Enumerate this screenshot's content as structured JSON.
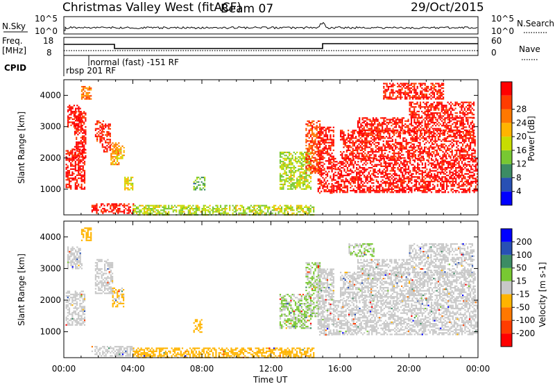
{
  "header": {
    "station": "Christmas Valley West (fitACF)",
    "beam": "Beam 07",
    "date": "29/Oct/2015"
  },
  "panels": {
    "nsky": {
      "label": "N.Sky",
      "tick_top": "10^5",
      "tick_bottom": "10^0",
      "right_label": "N.Search",
      "right_tick_top": "10^5",
      "right_tick_bottom": "10^0"
    },
    "freq": {
      "label": "Freq.",
      "unit": "[MHz]",
      "tick_top": "18",
      "tick_bottom": "8",
      "right_label": "Nave",
      "right_tick_top": "60",
      "right_tick_bottom": "0"
    },
    "cpid": {
      "label": "CPID",
      "mode1": "rbsp 201 RF",
      "mode2": "normal (fast) -151 RF"
    }
  },
  "colors": {
    "power": [
      "#0000ff",
      "#2850b4",
      "#3c8c64",
      "#78c832",
      "#c8dc00",
      "#ffb400",
      "#ff7800",
      "#ff3c00",
      "#ff0000"
    ],
    "velocity": [
      "#ff0000",
      "#ff3c00",
      "#ff7800",
      "#ffb400",
      "#c8c8c8",
      "#78c832",
      "#3c8c64",
      "#2850b4",
      "#0000ff"
    ],
    "ground_scatter": "#c8c8c8"
  },
  "chart_data": [
    {
      "type": "heatmap",
      "title": "Power",
      "ylabel": "Slant Range [km]",
      "xlabel": "Time UT",
      "xlim": [
        "00:00",
        "24:00"
      ],
      "ylim": [
        180,
        4500
      ],
      "y_ticks": [
        "1000",
        "2000",
        "3000",
        "4000"
      ],
      "colorbar": {
        "label": "Power [dB]",
        "ticks": [
          "4",
          "8",
          "12",
          "16",
          "20",
          "24",
          "28"
        ],
        "range": [
          0,
          30
        ]
      },
      "regions": [
        {
          "t0": 0.1,
          "t1": 1.2,
          "r0": 1000,
          "r1": 2300,
          "level": 28
        },
        {
          "t0": 0.2,
          "t1": 1.0,
          "r0": 3000,
          "r1": 3700,
          "level": 28
        },
        {
          "t0": 0.6,
          "t1": 1.3,
          "r0": 2000,
          "r1": 3500,
          "level": 28
        },
        {
          "t0": 1.0,
          "t1": 1.6,
          "r0": 3900,
          "r1": 4300,
          "level": 22
        },
        {
          "t0": 1.8,
          "t1": 2.3,
          "r0": 2500,
          "r1": 3200,
          "level": 26
        },
        {
          "t0": 2.2,
          "t1": 2.7,
          "r0": 2200,
          "r1": 3100,
          "level": 27
        },
        {
          "t0": 2.7,
          "t1": 3.2,
          "r0": 1800,
          "r1": 2500,
          "level": 20
        },
        {
          "t0": 3.0,
          "t1": 3.5,
          "r0": 2000,
          "r1": 2400,
          "level": 18
        },
        {
          "t0": 3.5,
          "t1": 4.0,
          "r0": 1000,
          "r1": 1400,
          "level": 16
        },
        {
          "t0": 1.6,
          "t1": 4.0,
          "r0": 250,
          "r1": 550,
          "level": 28
        },
        {
          "t0": 4.0,
          "t1": 14.5,
          "r0": 200,
          "r1": 500,
          "level": 14
        },
        {
          "t0": 7.5,
          "t1": 8.2,
          "r0": 1000,
          "r1": 1400,
          "level": 10
        },
        {
          "t0": 12.5,
          "t1": 14.3,
          "r0": 1000,
          "r1": 2200,
          "level": 14
        },
        {
          "t0": 14.0,
          "t1": 14.8,
          "r0": 1500,
          "r1": 3200,
          "level": 24
        },
        {
          "t0": 14.7,
          "t1": 15.6,
          "r0": 900,
          "r1": 3000,
          "level": 28
        },
        {
          "t0": 15.6,
          "t1": 24.0,
          "r0": 900,
          "r1": 2000,
          "level": 29
        },
        {
          "t0": 16.0,
          "t1": 23.8,
          "r0": 2000,
          "r1": 2900,
          "level": 28
        },
        {
          "t0": 17.0,
          "t1": 23.8,
          "r0": 2800,
          "r1": 3300,
          "level": 28
        },
        {
          "t0": 20.0,
          "t1": 23.8,
          "r0": 3300,
          "r1": 3800,
          "level": 28
        },
        {
          "t0": 18.5,
          "t1": 22.0,
          "r0": 3900,
          "r1": 4400,
          "level": 27
        }
      ]
    },
    {
      "type": "heatmap",
      "title": "Velocity",
      "ylabel": "Slant Range [km]",
      "xlabel": "Time UT",
      "xlim": [
        "00:00",
        "24:00"
      ],
      "ylim": [
        180,
        4500
      ],
      "y_ticks": [
        "1000",
        "2000",
        "3000",
        "4000"
      ],
      "x_ticks": [
        "00:00",
        "04:00",
        "08:00",
        "12:00",
        "16:00",
        "20:00",
        "00:00"
      ],
      "colorbar": {
        "label": "Velocity [m s-1]",
        "ticks": [
          "200",
          "100",
          "50",
          "15",
          "-15",
          "-50",
          "-100",
          "-200"
        ],
        "range": [
          -250,
          250
        ]
      },
      "regions": [
        {
          "t0": 0.1,
          "t1": 1.2,
          "r0": 1200,
          "r1": 2300,
          "level": 0
        },
        {
          "t0": 0.2,
          "t1": 1.0,
          "r0": 3000,
          "r1": 3700,
          "level": 0
        },
        {
          "t0": 1.0,
          "t1": 1.6,
          "r0": 3900,
          "r1": 4300,
          "level": -60
        },
        {
          "t0": 1.8,
          "t1": 2.8,
          "r0": 2200,
          "r1": 3300,
          "level": 0
        },
        {
          "t0": 2.8,
          "t1": 3.5,
          "r0": 1800,
          "r1": 2400,
          "level": -40
        },
        {
          "t0": 1.6,
          "t1": 4.0,
          "r0": 250,
          "r1": 550,
          "level": 0
        },
        {
          "t0": 4.0,
          "t1": 14.5,
          "r0": 200,
          "r1": 500,
          "level": -60
        },
        {
          "t0": 7.5,
          "t1": 8.0,
          "r0": 1000,
          "r1": 1400,
          "level": -60
        },
        {
          "t0": 12.5,
          "t1": 14.3,
          "r0": 1100,
          "r1": 2200,
          "level": 30
        },
        {
          "t0": 14.0,
          "t1": 14.8,
          "r0": 1500,
          "r1": 3200,
          "level": 30
        },
        {
          "t0": 14.7,
          "t1": 15.6,
          "r0": 900,
          "r1": 3000,
          "level": 0
        },
        {
          "t0": 15.6,
          "t1": 24.0,
          "r0": 900,
          "r1": 2000,
          "level": 0
        },
        {
          "t0": 16.0,
          "t1": 23.8,
          "r0": 2000,
          "r1": 2900,
          "level": 0
        },
        {
          "t0": 17.0,
          "t1": 23.8,
          "r0": 2800,
          "r1": 3300,
          "level": 0
        },
        {
          "t0": 20.0,
          "t1": 23.8,
          "r0": 3300,
          "r1": 3800,
          "level": 0
        },
        {
          "t0": 16.5,
          "t1": 18.0,
          "r0": 3400,
          "r1": 3800,
          "level": 30
        }
      ]
    }
  ]
}
